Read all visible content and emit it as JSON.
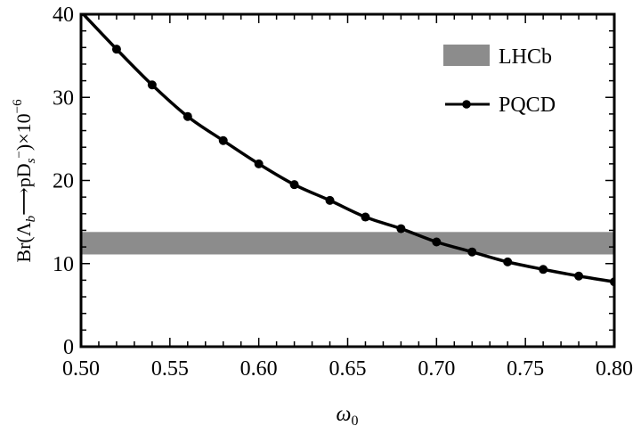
{
  "chart_data": {
    "type": "line",
    "xlabel": "ω0",
    "ylabel": "Br(Λb⟶pDs⁻)×10⁻⁶",
    "xlim": [
      0.5,
      0.8
    ],
    "ylim": [
      0,
      40
    ],
    "x_ticks": [
      0.5,
      0.55,
      0.6,
      0.65,
      0.7,
      0.75,
      0.8
    ],
    "y_ticks": [
      0,
      10,
      20,
      30,
      40
    ],
    "x_tick_labels": [
      "0.50",
      "0.55",
      "0.60",
      "0.65",
      "0.70",
      "0.75",
      "0.80"
    ],
    "y_tick_labels": [
      "0",
      "10",
      "20",
      "30",
      "40"
    ],
    "grid": false,
    "legend_position": "top-right",
    "legend": [
      {
        "label": "LHCb",
        "kind": "band"
      },
      {
        "label": "PQCD",
        "kind": "line-marker"
      }
    ],
    "band": {
      "name": "LHCb",
      "y_low": 11.1,
      "y_high": 13.8,
      "color": "#8c8c8c"
    },
    "series": [
      {
        "name": "PQCD",
        "color": "#000000",
        "x": [
          0.5,
          0.52,
          0.54,
          0.56,
          0.58,
          0.6,
          0.62,
          0.64,
          0.66,
          0.68,
          0.7,
          0.72,
          0.74,
          0.76,
          0.78,
          0.8
        ],
        "y": [
          40.3,
          35.8,
          31.5,
          27.7,
          24.8,
          22.0,
          19.5,
          17.6,
          15.6,
          14.2,
          12.6,
          11.4,
          10.2,
          9.3,
          8.5,
          7.8
        ]
      }
    ]
  }
}
